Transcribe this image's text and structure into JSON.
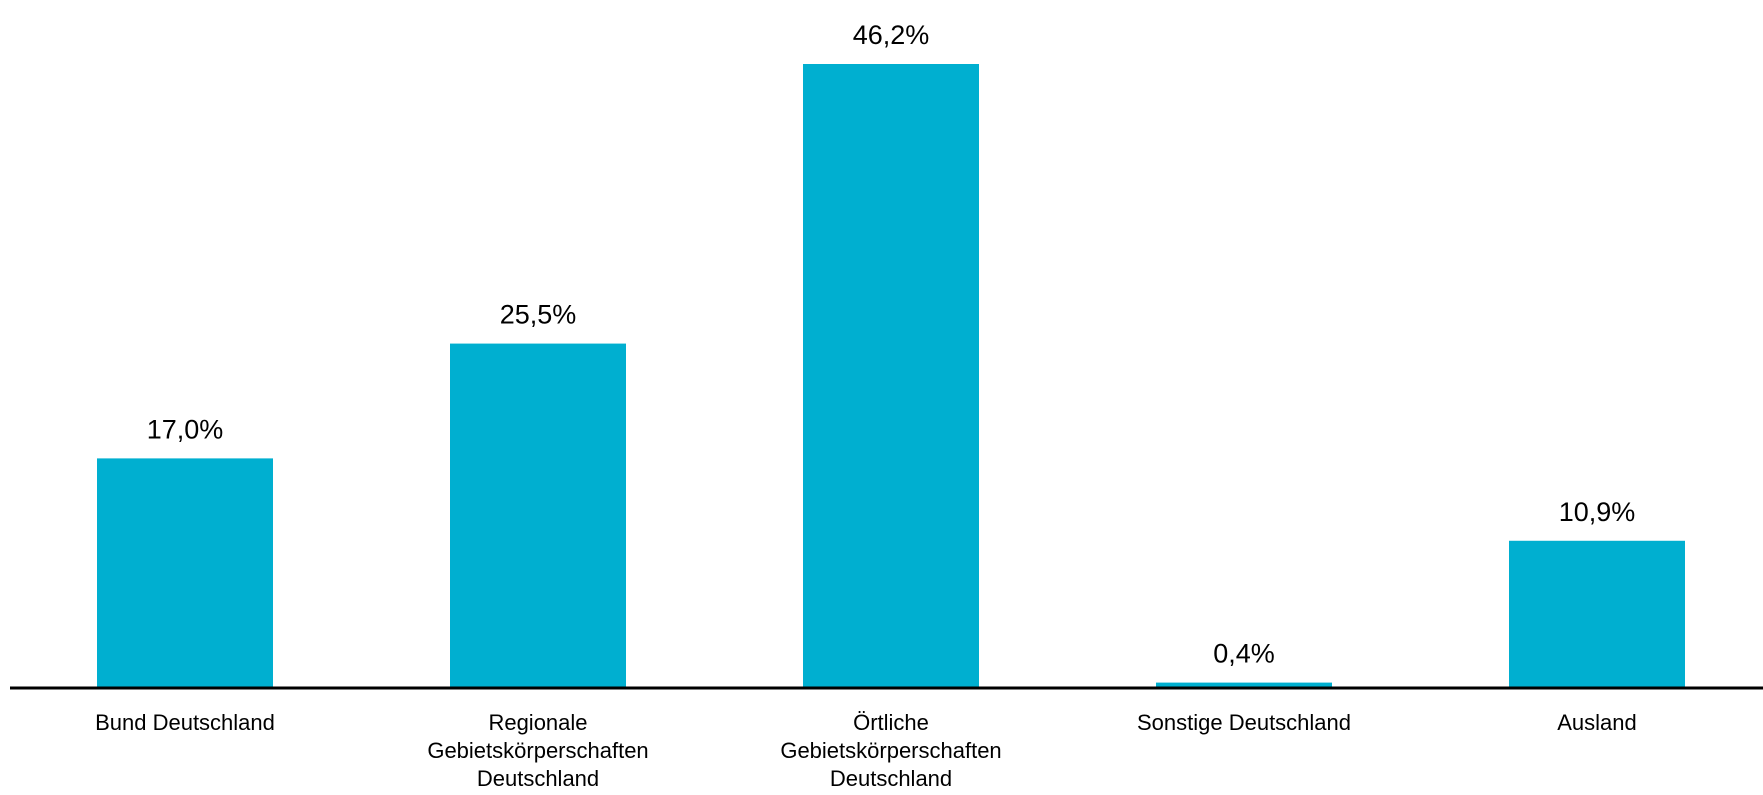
{
  "chart_data": {
    "type": "bar",
    "categories": [
      [
        "Bund Deutschland"
      ],
      [
        "Regionale",
        "Gebietskörperschaften",
        "Deutschland"
      ],
      [
        "Örtliche",
        "Gebietskörperschaften",
        "Deutschland"
      ],
      [
        "Sonstige Deutschland"
      ],
      [
        "Ausland"
      ]
    ],
    "values": [
      17.0,
      25.5,
      46.2,
      0.4,
      10.9
    ],
    "data_labels": [
      "17,0%",
      "25,5%",
      "46,2%",
      "0,4%",
      "10,9%"
    ],
    "ylim": [
      0,
      46.2
    ],
    "grid": false,
    "legend": "none",
    "colors": {
      "bar": "#00AFD0",
      "axis": "#000000",
      "text": "#000000"
    }
  }
}
